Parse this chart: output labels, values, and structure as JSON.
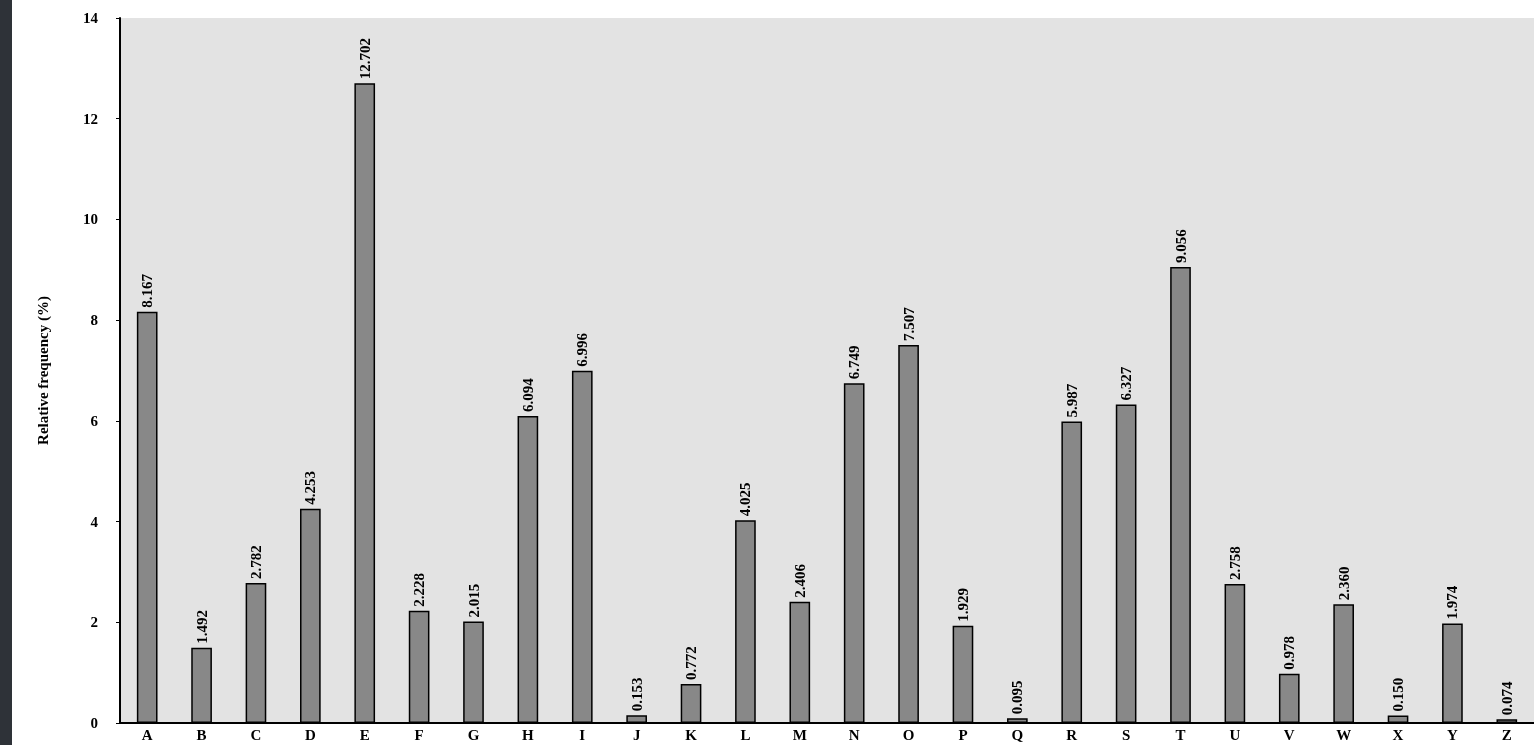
{
  "chart_data": {
    "type": "bar",
    "ylabel": "Relative frequency (%)",
    "categories": [
      "A",
      "B",
      "C",
      "D",
      "E",
      "F",
      "G",
      "H",
      "I",
      "J",
      "K",
      "L",
      "M",
      "N",
      "O",
      "P",
      "Q",
      "R",
      "S",
      "T",
      "U",
      "V",
      "W",
      "X",
      "Y",
      "Z"
    ],
    "values": [
      8.167,
      1.492,
      2.782,
      4.253,
      12.702,
      2.228,
      2.015,
      6.094,
      6.996,
      0.153,
      0.772,
      4.025,
      2.406,
      6.749,
      7.507,
      1.929,
      0.095,
      5.987,
      6.327,
      9.056,
      2.758,
      0.978,
      2.36,
      0.15,
      1.974,
      0.074
    ],
    "value_labels": [
      "8.167",
      "1.492",
      "2.782",
      "4.253",
      "12.702",
      "2.228",
      "2.015",
      "6.094",
      "6.996",
      "0.153",
      "0.772",
      "4.025",
      "2.406",
      "6.749",
      "7.507",
      "1.929",
      "0.095",
      "5.987",
      "6.327",
      "9.056",
      "2.758",
      "0.978",
      "2.360",
      "0.150",
      "1.974",
      "0.074"
    ],
    "color": "#888888",
    "ylim": [
      0,
      14
    ],
    "yticks": [
      0,
      2,
      4,
      6,
      8,
      10,
      12,
      14
    ],
    "grid": false
  }
}
